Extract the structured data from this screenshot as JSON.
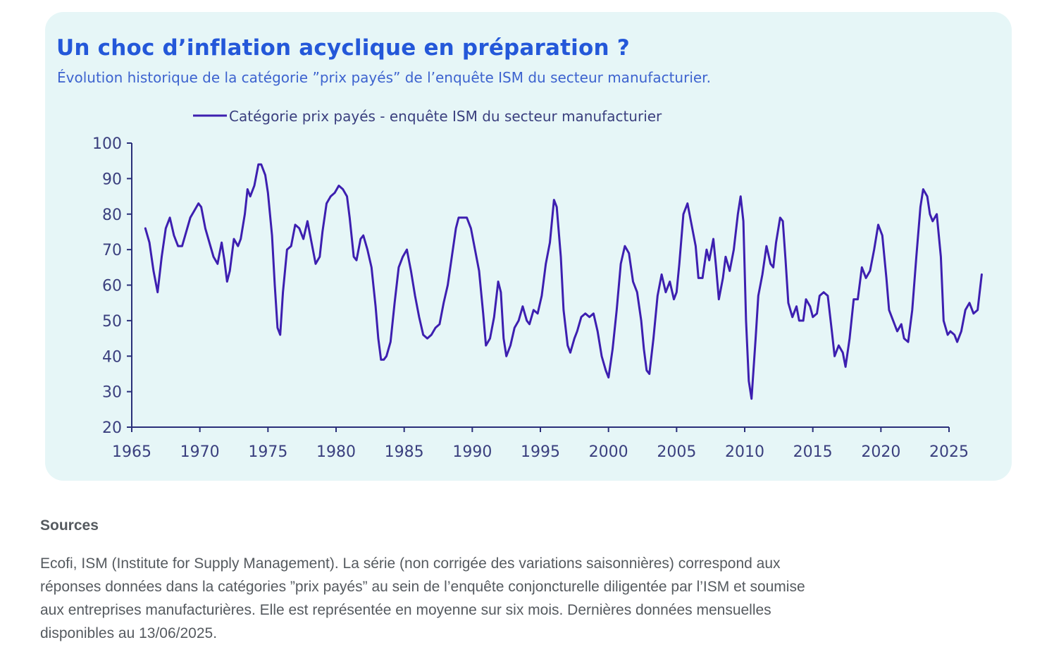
{
  "header": {
    "title": "Un choc d’inflation acyclique en préparation ?",
    "subtitle": "Évolution historique de la catégorie ”prix payés” de l’enquête ISM du secteur manufacturier."
  },
  "colors": {
    "card_background": "#e6f6f7",
    "title": "#2458d9",
    "line": "#3d1fb0",
    "axis": "#2a2f7a",
    "source_text": "#555a5f"
  },
  "chart_data": {
    "type": "line",
    "title": "Un choc d’inflation acyclique en préparation ?",
    "subtitle": "Évolution historique de la catégorie ”prix payés” de l’enquête ISM du secteur manufacturier.",
    "xlabel": "",
    "ylabel": "",
    "xlim": [
      1965,
      2025
    ],
    "ylim": [
      20,
      100
    ],
    "x_ticks": [
      1965,
      1970,
      1975,
      1980,
      1985,
      1990,
      1995,
      2000,
      2005,
      2010,
      2015,
      2020,
      2025
    ],
    "y_ticks": [
      20,
      30,
      40,
      50,
      60,
      70,
      80,
      90,
      100
    ],
    "grid": false,
    "legend": "top-center",
    "series": [
      {
        "name": "Catégorie prix payés - enquête ISM du secteur manufacturier",
        "points": [
          [
            1966.0,
            76
          ],
          [
            1966.3,
            72
          ],
          [
            1966.6,
            64
          ],
          [
            1966.9,
            58
          ],
          [
            1967.2,
            68
          ],
          [
            1967.5,
            76
          ],
          [
            1967.8,
            79
          ],
          [
            1968.1,
            74
          ],
          [
            1968.4,
            71
          ],
          [
            1968.7,
            71
          ],
          [
            1969.0,
            75
          ],
          [
            1969.3,
            79
          ],
          [
            1969.6,
            81
          ],
          [
            1969.9,
            83
          ],
          [
            1970.1,
            82
          ],
          [
            1970.4,
            76
          ],
          [
            1970.7,
            72
          ],
          [
            1971.0,
            68
          ],
          [
            1971.3,
            66
          ],
          [
            1971.6,
            72
          ],
          [
            1971.8,
            67
          ],
          [
            1972.0,
            61
          ],
          [
            1972.2,
            64
          ],
          [
            1972.5,
            73
          ],
          [
            1972.8,
            71
          ],
          [
            1973.0,
            73
          ],
          [
            1973.3,
            80
          ],
          [
            1973.5,
            87
          ],
          [
            1973.7,
            85
          ],
          [
            1974.0,
            88
          ],
          [
            1974.3,
            94
          ],
          [
            1974.5,
            94
          ],
          [
            1974.8,
            91
          ],
          [
            1975.0,
            86
          ],
          [
            1975.3,
            74
          ],
          [
            1975.5,
            60
          ],
          [
            1975.7,
            48
          ],
          [
            1975.9,
            46
          ],
          [
            1976.1,
            58
          ],
          [
            1976.4,
            70
          ],
          [
            1976.7,
            71
          ],
          [
            1977.0,
            77
          ],
          [
            1977.3,
            76
          ],
          [
            1977.6,
            73
          ],
          [
            1977.9,
            78
          ],
          [
            1978.2,
            72
          ],
          [
            1978.5,
            66
          ],
          [
            1978.8,
            68
          ],
          [
            1979.0,
            75
          ],
          [
            1979.3,
            83
          ],
          [
            1979.6,
            85
          ],
          [
            1979.9,
            86
          ],
          [
            1980.2,
            88
          ],
          [
            1980.5,
            87
          ],
          [
            1980.8,
            85
          ],
          [
            1981.0,
            79
          ],
          [
            1981.3,
            68
          ],
          [
            1981.5,
            67
          ],
          [
            1981.8,
            73
          ],
          [
            1982.0,
            74
          ],
          [
            1982.3,
            70
          ],
          [
            1982.6,
            65
          ],
          [
            1982.9,
            54
          ],
          [
            1983.1,
            45
          ],
          [
            1983.3,
            39
          ],
          [
            1983.5,
            39
          ],
          [
            1983.7,
            40
          ],
          [
            1984.0,
            44
          ],
          [
            1984.3,
            55
          ],
          [
            1984.6,
            65
          ],
          [
            1984.9,
            68
          ],
          [
            1985.2,
            70
          ],
          [
            1985.5,
            64
          ],
          [
            1985.8,
            57
          ],
          [
            1986.1,
            51
          ],
          [
            1986.4,
            46
          ],
          [
            1986.7,
            45
          ],
          [
            1987.0,
            46
          ],
          [
            1987.3,
            48
          ],
          [
            1987.6,
            49
          ],
          [
            1987.9,
            55
          ],
          [
            1988.2,
            60
          ],
          [
            1988.5,
            68
          ],
          [
            1988.8,
            76
          ],
          [
            1989.0,
            79
          ],
          [
            1989.3,
            79
          ],
          [
            1989.6,
            79
          ],
          [
            1989.9,
            76
          ],
          [
            1990.2,
            70
          ],
          [
            1990.5,
            64
          ],
          [
            1990.8,
            52
          ],
          [
            1991.0,
            43
          ],
          [
            1991.3,
            45
          ],
          [
            1991.6,
            51
          ],
          [
            1991.9,
            61
          ],
          [
            1992.1,
            58
          ],
          [
            1992.3,
            45
          ],
          [
            1992.5,
            40
          ],
          [
            1992.8,
            43
          ],
          [
            1993.1,
            48
          ],
          [
            1993.4,
            50
          ],
          [
            1993.7,
            54
          ],
          [
            1994.0,
            50
          ],
          [
            1994.2,
            49
          ],
          [
            1994.5,
            53
          ],
          [
            1994.8,
            52
          ],
          [
            1995.1,
            57
          ],
          [
            1995.4,
            66
          ],
          [
            1995.7,
            72
          ],
          [
            1996.0,
            84
          ],
          [
            1996.2,
            82
          ],
          [
            1996.5,
            68
          ],
          [
            1996.7,
            53
          ],
          [
            1997.0,
            43
          ],
          [
            1997.2,
            41
          ],
          [
            1997.5,
            45
          ],
          [
            1997.7,
            47
          ],
          [
            1998.0,
            51
          ],
          [
            1998.3,
            52
          ],
          [
            1998.6,
            51
          ],
          [
            1998.9,
            52
          ],
          [
            1999.2,
            47
          ],
          [
            1999.5,
            40
          ],
          [
            1999.8,
            36
          ],
          [
            2000.0,
            34
          ],
          [
            2000.3,
            42
          ],
          [
            2000.6,
            53
          ],
          [
            2000.9,
            66
          ],
          [
            2001.2,
            71
          ],
          [
            2001.5,
            69
          ],
          [
            2001.8,
            61
          ],
          [
            2002.1,
            58
          ],
          [
            2002.4,
            50
          ],
          [
            2002.6,
            42
          ],
          [
            2002.8,
            36
          ],
          [
            2003.0,
            35
          ],
          [
            2003.3,
            45
          ],
          [
            2003.6,
            57
          ],
          [
            2003.9,
            63
          ],
          [
            2004.2,
            58
          ],
          [
            2004.5,
            61
          ],
          [
            2004.8,
            56
          ],
          [
            2005.0,
            58
          ],
          [
            2005.2,
            66
          ],
          [
            2005.5,
            80
          ],
          [
            2005.8,
            83
          ],
          [
            2006.1,
            77
          ],
          [
            2006.4,
            71
          ],
          [
            2006.6,
            62
          ],
          [
            2006.9,
            62
          ],
          [
            2007.2,
            70
          ],
          [
            2007.4,
            67
          ],
          [
            2007.7,
            73
          ],
          [
            2007.9,
            65
          ],
          [
            2008.1,
            56
          ],
          [
            2008.4,
            62
          ],
          [
            2008.6,
            68
          ],
          [
            2008.9,
            64
          ],
          [
            2009.2,
            70
          ],
          [
            2009.5,
            80
          ],
          [
            2009.7,
            85
          ],
          [
            2009.9,
            78
          ],
          [
            2010.1,
            50
          ],
          [
            2010.3,
            33
          ],
          [
            2010.5,
            28
          ],
          [
            2010.8,
            45
          ],
          [
            2011.0,
            57
          ],
          [
            2011.3,
            63
          ],
          [
            2011.6,
            71
          ],
          [
            2011.9,
            66
          ],
          [
            2012.1,
            65
          ],
          [
            2012.3,
            72
          ],
          [
            2012.6,
            79
          ],
          [
            2012.8,
            78
          ],
          [
            2013.0,
            67
          ],
          [
            2013.2,
            55
          ],
          [
            2013.5,
            51
          ],
          [
            2013.8,
            54
          ],
          [
            2014.0,
            50
          ],
          [
            2014.3,
            50
          ],
          [
            2014.5,
            56
          ],
          [
            2014.8,
            54
          ],
          [
            2015.0,
            51
          ],
          [
            2015.3,
            52
          ],
          [
            2015.5,
            57
          ],
          [
            2015.8,
            58
          ],
          [
            2016.1,
            57
          ],
          [
            2016.4,
            47
          ],
          [
            2016.6,
            40
          ],
          [
            2016.9,
            43
          ],
          [
            2017.2,
            41
          ],
          [
            2017.4,
            37
          ],
          [
            2017.7,
            45
          ],
          [
            2018.0,
            56
          ],
          [
            2018.3,
            56
          ],
          [
            2018.6,
            65
          ],
          [
            2018.9,
            62
          ],
          [
            2019.2,
            64
          ],
          [
            2019.5,
            70
          ],
          [
            2019.8,
            77
          ],
          [
            2020.1,
            74
          ],
          [
            2020.4,
            62
          ],
          [
            2020.6,
            53
          ],
          [
            2020.9,
            50
          ],
          [
            2021.2,
            47
          ],
          [
            2021.5,
            49
          ],
          [
            2021.7,
            45
          ],
          [
            2022.0,
            44
          ],
          [
            2022.3,
            53
          ],
          [
            2022.6,
            68
          ],
          [
            2022.9,
            82
          ],
          [
            2023.1,
            87
          ],
          [
            2023.4,
            85
          ],
          [
            2023.6,
            80
          ],
          [
            2023.8,
            78
          ],
          [
            2024.1,
            80
          ],
          [
            2024.4,
            68
          ],
          [
            2024.6,
            50
          ],
          [
            2024.9,
            46
          ],
          [
            2025.1,
            47
          ],
          [
            2025.4,
            46
          ],
          [
            2025.6,
            44
          ],
          [
            2025.9,
            47
          ],
          [
            2026.2,
            53
          ],
          [
            2026.5,
            55
          ],
          [
            2026.8,
            52
          ],
          [
            2027.1,
            53
          ],
          [
            2027.4,
            63
          ]
        ]
      }
    ]
  },
  "sources": {
    "heading": "Sources",
    "lines": [
      "Ecofi, ISM (Institute for Supply Management). La série (non corrigée des variations saisonnières) correspond aux",
      "réponses données dans la catégories ”prix payés” au sein de l’enquête conjoncturelle diligentée par l’ISM et soumise",
      "aux entreprises manufacturières. Elle est représentée en moyenne sur six mois. Dernières données mensuelles",
      "disponibles au 13/06/2025."
    ]
  }
}
